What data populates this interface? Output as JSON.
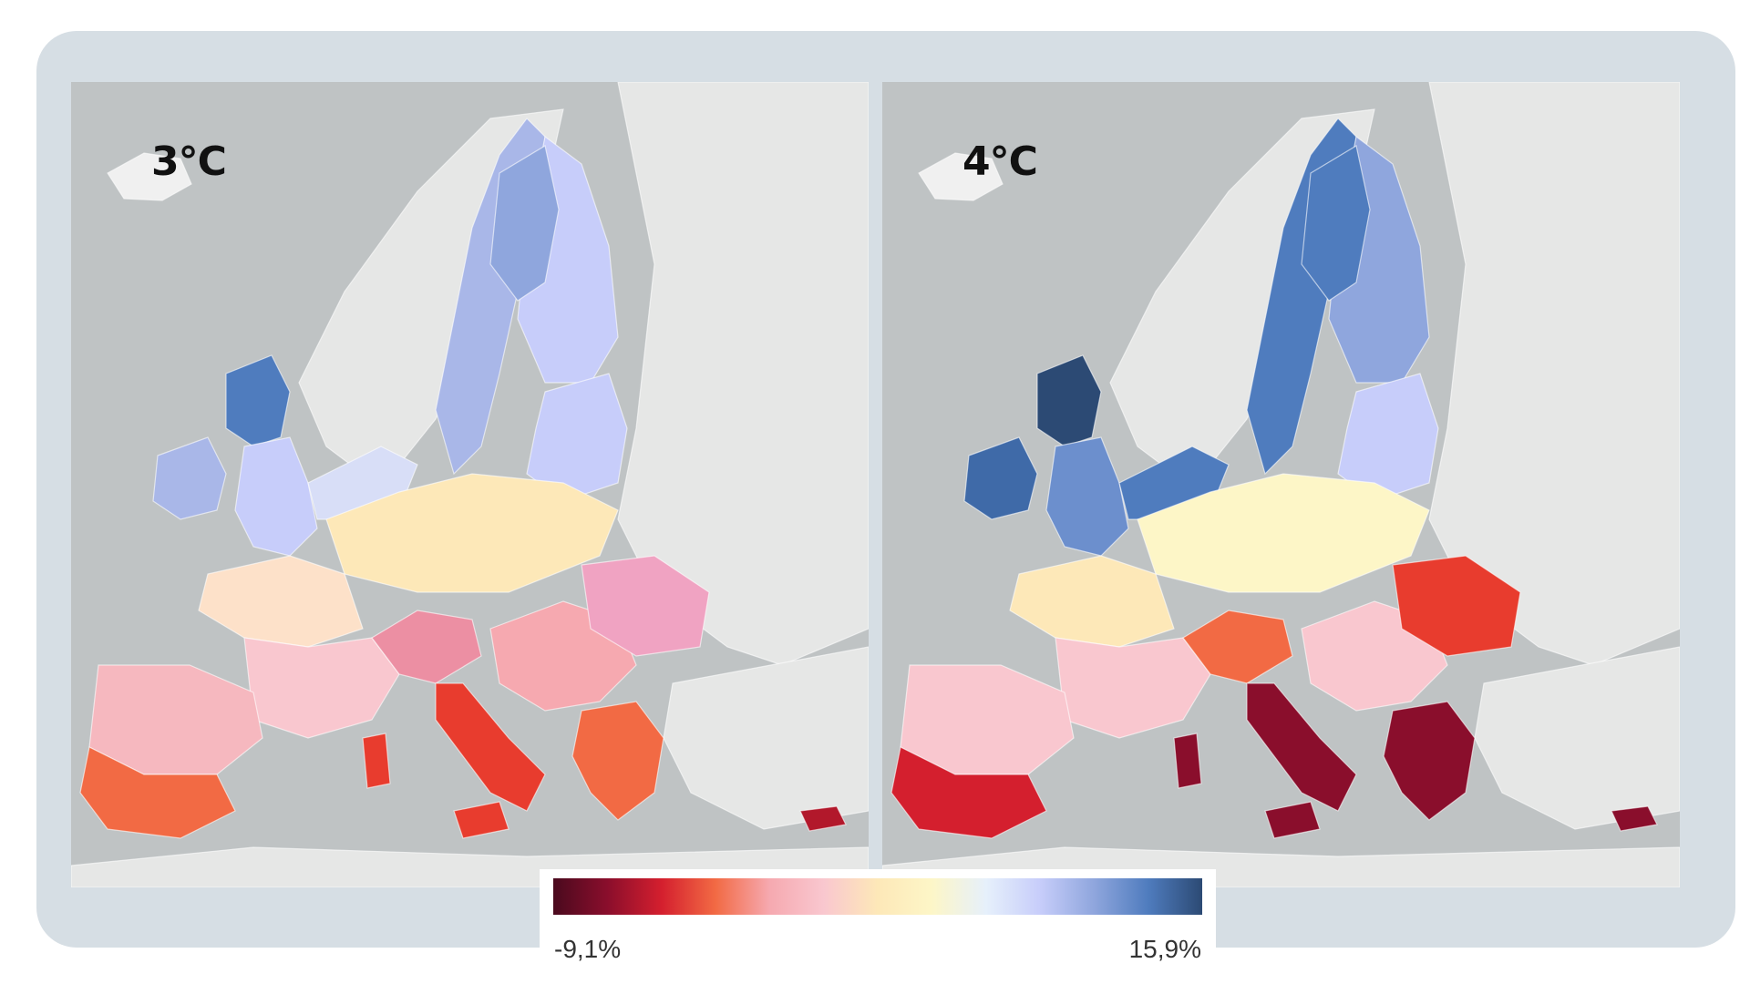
{
  "panels": [
    {
      "label": "3°C"
    },
    {
      "label": "4°C"
    }
  ],
  "legend": {
    "min_label": "-9,1%",
    "max_label": "15,9%",
    "colors": [
      "#4a0a1e",
      "#8a0e2c",
      "#d41f2e",
      "#f26a44",
      "#f6a9b0",
      "#f9c7cf",
      "#fde8b8",
      "#fdf6c7",
      "#e6f0fb",
      "#c7cdfa",
      "#8fa6dd",
      "#4f7cbe",
      "#2c4a74"
    ]
  },
  "map_colors": {
    "sea": "#bfc3c4",
    "land_outside": "#e6e7e6",
    "no_data": "#d9dada"
  },
  "regions_3c": {
    "iceland": "#f0f0f0",
    "scandinavia_west": "#eeeeee",
    "sweden": "#a9b7e8",
    "finland": "#c7cdfa",
    "finland_north": "#8fa6dd",
    "baltic": "#c7cdfa",
    "uk_north": "#4f7cbe",
    "uk_south": "#c7cdfa",
    "ireland": "#a9b7e8",
    "benelux": "#d8def7",
    "germany_poland": "#fde8b8",
    "france_north": "#fde1c9",
    "france_south": "#f9c7cf",
    "iberia_north": "#f6b8bf",
    "iberia_south": "#f26a44",
    "italy_north": "#ec8fa3",
    "italy_south": "#e83c2e",
    "balkans": "#f6a9b0",
    "greece": "#f26a44",
    "romania": "#f0a3c2",
    "cyprus": "#b2182b"
  },
  "regions_4c": {
    "iceland": "#f0f0f0",
    "scandinavia_west": "#eeeeee",
    "sweden": "#4f7cbe",
    "finland": "#8fa6dd",
    "finland_north": "#4f7cbe",
    "baltic": "#c7cdfa",
    "uk_north": "#2c4a74",
    "uk_south": "#6c8fcd",
    "ireland": "#3f6aa8",
    "benelux": "#4f7cbe",
    "germany_poland": "#fdf6c7",
    "france_north": "#fde8b8",
    "france_south": "#f9c7cf",
    "iberia_north": "#f9c7cf",
    "iberia_south": "#d41f2e",
    "italy_north": "#f26a44",
    "italy_south": "#8a0e2c",
    "balkans": "#f9c7cf",
    "greece": "#8a0e2c",
    "romania": "#e83c2e",
    "cyprus": "#8a0e2c"
  }
}
